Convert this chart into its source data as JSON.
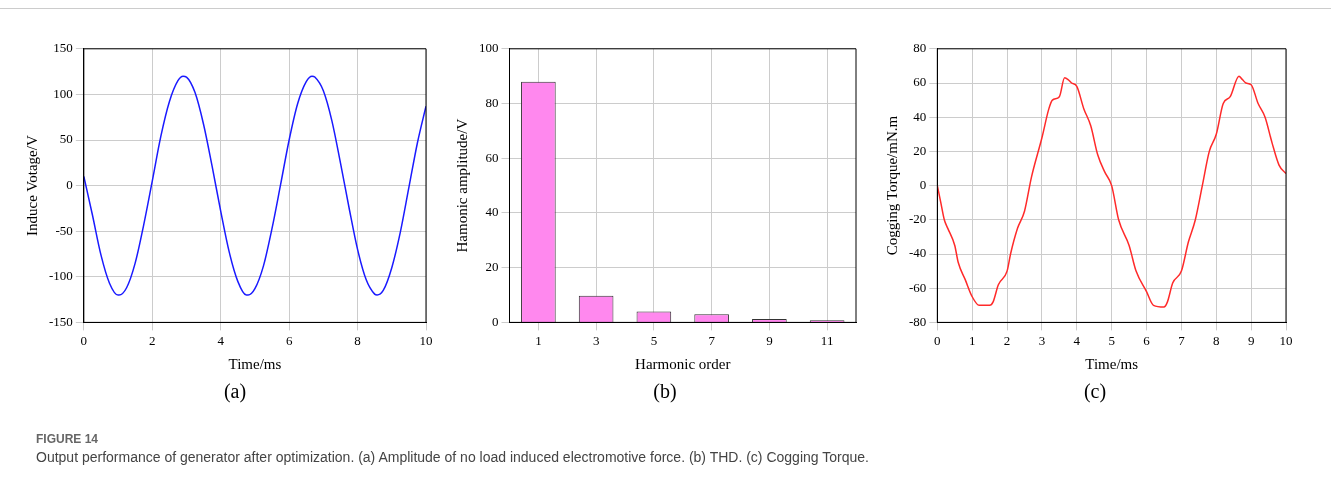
{
  "chart_data": [
    {
      "type": "line",
      "xlabel": "Time/ms",
      "ylabel": "Induce Votage/V",
      "color": "#1a1aff",
      "grid": true,
      "xlim": [
        0,
        10
      ],
      "ylim": [
        -150,
        150
      ],
      "xticks": [
        0,
        2,
        4,
        6,
        8,
        10
      ],
      "yticks": [
        -150,
        -100,
        -50,
        0,
        50,
        100,
        150
      ],
      "annotations": [
        "(a)"
      ],
      "x": [
        0,
        0.25,
        0.5,
        0.75,
        1.0,
        1.03,
        1.25,
        1.5,
        1.75,
        2.0,
        2.25,
        2.5,
        2.75,
        2.9,
        3.0,
        3.25,
        3.5,
        3.75,
        4.0,
        4.25,
        4.5,
        4.75,
        4.8,
        5.0,
        5.25,
        5.5,
        5.75,
        6.0,
        6.25,
        6.5,
        6.67,
        6.75,
        7.0,
        7.25,
        7.5,
        7.75,
        8.0,
        8.25,
        8.5,
        8.57,
        8.75,
        9.0,
        9.25,
        9.5,
        9.75,
        10
      ],
      "values": [
        10,
        -32,
        -76,
        -107,
        -120,
        -120,
        -112,
        -85,
        -43,
        5,
        54,
        92,
        115,
        120,
        119,
        102,
        67,
        21,
        -28,
        -73,
        -105,
        -120,
        -120,
        -113,
        -88,
        -47,
        1,
        50,
        90,
        114,
        120,
        119,
        104,
        71,
        25,
        -24,
        -70,
        -103,
        -119,
        -120,
        -115,
        -90,
        -51,
        -2,
        47,
        87
      ]
    },
    {
      "type": "bar",
      "xlabel": "Harmonic order",
      "ylabel": "Hamonic amplitude/V",
      "color": "#ff88ee",
      "grid": true,
      "ylim": [
        0,
        100
      ],
      "yticks": [
        0,
        20,
        40,
        60,
        80,
        100
      ],
      "annotations": [
        "(b)"
      ],
      "categories": [
        "1",
        "3",
        "5",
        "7",
        "9",
        "11"
      ],
      "values": [
        88,
        9.7,
        4,
        3,
        1.2,
        0.8
      ]
    },
    {
      "type": "line",
      "xlabel": "Time/ms",
      "ylabel": "Cogging Torque/mN.m",
      "color": "#ff2a2a",
      "grid": true,
      "xlim": [
        0,
        10
      ],
      "ylim": [
        -80,
        80
      ],
      "xticks": [
        0,
        1,
        2,
        3,
        4,
        5,
        6,
        7,
        8,
        9,
        10
      ],
      "yticks": [
        -80,
        -60,
        -40,
        -20,
        0,
        20,
        40,
        60,
        80
      ],
      "annotations": [
        "(c)"
      ],
      "x": [
        0,
        0.1,
        0.2,
        0.3,
        0.5,
        0.6,
        0.8,
        1.0,
        1.2,
        1.5,
        1.6,
        1.75,
        2.0,
        2.1,
        2.3,
        2.5,
        2.7,
        3.0,
        3.2,
        3.3,
        3.5,
        3.65,
        3.75,
        3.85,
        4.0,
        4.2,
        4.4,
        4.6,
        4.8,
        5.0,
        5.2,
        5.5,
        5.7,
        6.0,
        6.2,
        6.5,
        6.6,
        6.75,
        7.0,
        7.2,
        7.4,
        7.6,
        7.8,
        8.0,
        8.2,
        8.4,
        8.65,
        8.75,
        8.85,
        9.0,
        9.2,
        9.4,
        9.6,
        9.8,
        10
      ],
      "values": [
        0,
        -10,
        -20,
        -25,
        -35,
        -45,
        -55,
        -65,
        -70,
        -70,
        -68,
        -58,
        -50,
        -40,
        -25,
        -15,
        5,
        28,
        45,
        50,
        52,
        63,
        62,
        60,
        58,
        45,
        35,
        18,
        8,
        0,
        -20,
        -35,
        -50,
        -62,
        -70,
        -71,
        -68,
        -57,
        -50,
        -33,
        -20,
        0,
        20,
        30,
        48,
        52,
        64,
        62,
        60,
        59,
        48,
        40,
        25,
        12,
        7
      ]
    },
    {
      "type": "other",
      "title": "FIGURE 14",
      "annotations": [
        "Output performance of generator after optimization. (a) Amplitude of no load induced electromotive force. (b) THD. (c) Cogging Torque."
      ]
    }
  ]
}
